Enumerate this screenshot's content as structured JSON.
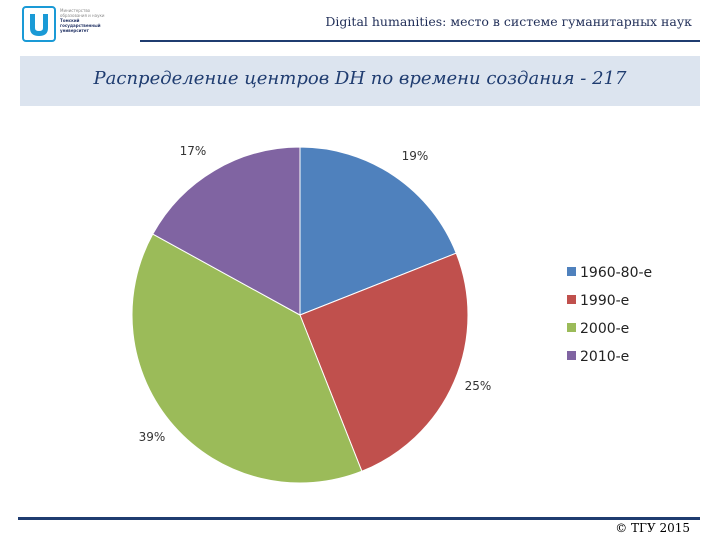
{
  "header": {
    "title": "Digital humanities: место в системе гуманитарных наук",
    "logo": {
      "icon": "university-shield-icon",
      "line1": "Министерство",
      "line2": "образования и науки",
      "name1": "Томский",
      "name2": "государственный",
      "name3": "университет",
      "color": "#1a9ad6"
    }
  },
  "slide": {
    "title": "Распределение центров DH по времени создания - 217"
  },
  "chart_data": {
    "type": "pie",
    "categories": [
      "1960-80-е",
      "1990-е",
      "2000-е",
      "2010-е"
    ],
    "values": [
      19,
      25,
      39,
      17
    ],
    "labels": [
      "19%",
      "25%",
      "39%",
      "17%"
    ],
    "colors": [
      "#4f81bd",
      "#c0504d",
      "#9bbb59",
      "#8064a2"
    ],
    "legend": "right"
  },
  "footer": {
    "copyright": "© ТГУ 2015"
  }
}
